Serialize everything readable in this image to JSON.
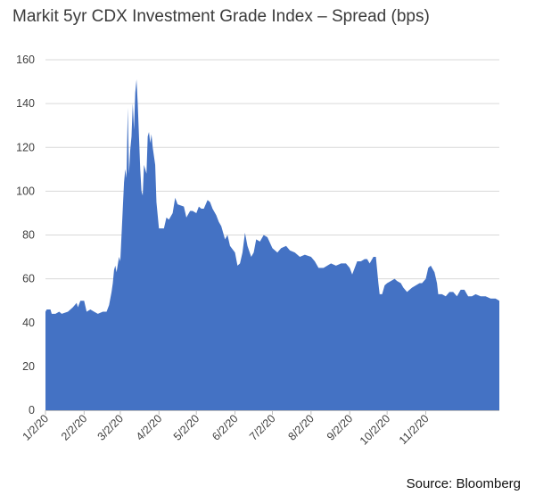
{
  "title": "Markit 5yr CDX Investment Grade Index – Spread (bps)",
  "source": "Source: Bloomberg",
  "colors": {
    "area": "#4472c4",
    "grid": "#d9d9d9"
  },
  "chart_data": {
    "type": "area",
    "title": "Markit 5yr CDX Investment Grade Index – Spread (bps)",
    "xlabel": "",
    "ylabel": "",
    "ylim": [
      0,
      160
    ],
    "yticks": [
      0,
      20,
      40,
      60,
      80,
      100,
      120,
      140,
      160
    ],
    "xlim": [
      "2020-01-02",
      "2020-12-31"
    ],
    "xticks": [
      {
        "date": "2020-01-02",
        "label": "1/2/20"
      },
      {
        "date": "2020-02-02",
        "label": "2/2/20"
      },
      {
        "date": "2020-03-02",
        "label": "3/2/20"
      },
      {
        "date": "2020-04-02",
        "label": "4/2/20"
      },
      {
        "date": "2020-05-02",
        "label": "5/2/20"
      },
      {
        "date": "2020-06-02",
        "label": "6/2/20"
      },
      {
        "date": "2020-07-02",
        "label": "7/2/20"
      },
      {
        "date": "2020-08-02",
        "label": "8/2/20"
      },
      {
        "date": "2020-09-02",
        "label": "9/2/20"
      },
      {
        "date": "2020-10-02",
        "label": "10/2/20"
      },
      {
        "date": "2020-11-02",
        "label": "11/2/20"
      }
    ],
    "grid": true,
    "series": [
      {
        "color": "#4472c4",
        "points": [
          [
            "2020-01-02",
            45
          ],
          [
            "2020-01-03",
            46
          ],
          [
            "2020-01-06",
            46
          ],
          [
            "2020-01-07",
            44
          ],
          [
            "2020-01-10",
            44
          ],
          [
            "2020-01-13",
            45
          ],
          [
            "2020-01-15",
            44
          ],
          [
            "2020-01-20",
            45
          ],
          [
            "2020-01-24",
            47
          ],
          [
            "2020-01-27",
            49
          ],
          [
            "2020-01-28",
            47
          ],
          [
            "2020-01-30",
            50
          ],
          [
            "2020-02-02",
            50
          ],
          [
            "2020-02-04",
            45
          ],
          [
            "2020-02-07",
            46
          ],
          [
            "2020-02-10",
            45
          ],
          [
            "2020-02-13",
            44
          ],
          [
            "2020-02-17",
            45
          ],
          [
            "2020-02-20",
            45
          ],
          [
            "2020-02-22",
            48
          ],
          [
            "2020-02-24",
            54
          ],
          [
            "2020-02-25",
            58
          ],
          [
            "2020-02-26",
            64
          ],
          [
            "2020-02-27",
            66
          ],
          [
            "2020-02-28",
            63
          ],
          [
            "2020-03-01",
            70
          ],
          [
            "2020-03-02",
            68
          ],
          [
            "2020-03-03",
            80
          ],
          [
            "2020-03-04",
            92
          ],
          [
            "2020-03-05",
            104
          ],
          [
            "2020-03-06",
            110
          ],
          [
            "2020-03-07",
            106
          ],
          [
            "2020-03-08",
            138
          ],
          [
            "2020-03-09",
            108
          ],
          [
            "2020-03-10",
            119
          ],
          [
            "2020-03-11",
            125
          ],
          [
            "2020-03-12",
            140
          ],
          [
            "2020-03-13",
            128
          ],
          [
            "2020-03-14",
            145
          ],
          [
            "2020-03-15",
            151
          ],
          [
            "2020-03-16",
            140
          ],
          [
            "2020-03-17",
            125
          ],
          [
            "2020-03-18",
            110
          ],
          [
            "2020-03-19",
            100
          ],
          [
            "2020-03-20",
            98
          ],
          [
            "2020-03-21",
            112
          ],
          [
            "2020-03-22",
            110
          ],
          [
            "2020-03-23",
            108
          ],
          [
            "2020-03-24",
            125
          ],
          [
            "2020-03-25",
            127
          ],
          [
            "2020-03-26",
            122
          ],
          [
            "2020-03-27",
            126
          ],
          [
            "2020-03-28",
            120
          ],
          [
            "2020-03-30",
            112
          ],
          [
            "2020-03-31",
            95
          ],
          [
            "2020-04-02",
            83
          ],
          [
            "2020-04-06",
            83
          ],
          [
            "2020-04-08",
            88
          ],
          [
            "2020-04-10",
            87
          ],
          [
            "2020-04-13",
            90
          ],
          [
            "2020-04-15",
            97
          ],
          [
            "2020-04-17",
            94
          ],
          [
            "2020-04-22",
            93
          ],
          [
            "2020-04-24",
            88
          ],
          [
            "2020-04-27",
            91
          ],
          [
            "2020-04-29",
            91
          ],
          [
            "2020-05-02",
            90
          ],
          [
            "2020-05-04",
            93
          ],
          [
            "2020-05-06",
            92
          ],
          [
            "2020-05-08",
            92
          ],
          [
            "2020-05-11",
            96
          ],
          [
            "2020-05-13",
            95
          ],
          [
            "2020-05-15",
            92
          ],
          [
            "2020-05-18",
            89
          ],
          [
            "2020-05-20",
            86
          ],
          [
            "2020-05-22",
            84
          ],
          [
            "2020-05-25",
            78
          ],
          [
            "2020-05-27",
            80
          ],
          [
            "2020-05-29",
            75
          ],
          [
            "2020-06-02",
            72
          ],
          [
            "2020-06-04",
            66
          ],
          [
            "2020-06-06",
            67
          ],
          [
            "2020-06-08",
            72
          ],
          [
            "2020-06-10",
            81
          ],
          [
            "2020-06-12",
            75
          ],
          [
            "2020-06-15",
            70
          ],
          [
            "2020-06-17",
            72
          ],
          [
            "2020-06-19",
            78
          ],
          [
            "2020-06-22",
            77
          ],
          [
            "2020-06-25",
            80
          ],
          [
            "2020-06-28",
            79
          ],
          [
            "2020-07-02",
            74
          ],
          [
            "2020-07-06",
            72
          ],
          [
            "2020-07-09",
            74
          ],
          [
            "2020-07-13",
            75
          ],
          [
            "2020-07-16",
            73
          ],
          [
            "2020-07-20",
            72
          ],
          [
            "2020-07-24",
            70
          ],
          [
            "2020-07-28",
            71
          ],
          [
            "2020-08-02",
            70
          ],
          [
            "2020-08-05",
            68
          ],
          [
            "2020-08-08",
            65
          ],
          [
            "2020-08-12",
            65
          ],
          [
            "2020-08-15",
            66
          ],
          [
            "2020-08-18",
            67
          ],
          [
            "2020-08-22",
            66
          ],
          [
            "2020-08-26",
            67
          ],
          [
            "2020-08-30",
            67
          ],
          [
            "2020-09-02",
            65
          ],
          [
            "2020-09-04",
            62
          ],
          [
            "2020-09-06",
            65
          ],
          [
            "2020-09-08",
            68
          ],
          [
            "2020-09-11",
            68
          ],
          [
            "2020-09-14",
            69
          ],
          [
            "2020-09-16",
            69
          ],
          [
            "2020-09-18",
            67
          ],
          [
            "2020-09-21",
            70
          ],
          [
            "2020-09-23",
            70
          ],
          [
            "2020-09-25",
            58
          ],
          [
            "2020-09-26",
            53
          ],
          [
            "2020-09-28",
            53
          ],
          [
            "2020-09-30",
            57
          ],
          [
            "2020-10-02",
            58
          ],
          [
            "2020-10-05",
            59
          ],
          [
            "2020-10-08",
            60
          ],
          [
            "2020-10-10",
            59
          ],
          [
            "2020-10-13",
            58
          ],
          [
            "2020-10-15",
            56
          ],
          [
            "2020-10-18",
            54
          ],
          [
            "2020-10-20",
            55
          ],
          [
            "2020-10-22",
            56
          ],
          [
            "2020-10-25",
            57
          ],
          [
            "2020-10-28",
            58
          ],
          [
            "2020-10-30",
            58
          ],
          [
            "2020-11-02",
            60
          ],
          [
            "2020-11-04",
            65
          ],
          [
            "2020-11-06",
            66
          ],
          [
            "2020-11-09",
            63
          ],
          [
            "2020-11-11",
            58
          ],
          [
            "2020-11-12",
            53
          ],
          [
            "2020-11-15",
            53
          ],
          [
            "2020-11-18",
            52
          ],
          [
            "2020-11-21",
            54
          ],
          [
            "2020-11-24",
            54
          ],
          [
            "2020-11-27",
            52
          ],
          [
            "2020-11-30",
            55
          ],
          [
            "2020-12-03",
            55
          ],
          [
            "2020-12-06",
            52
          ],
          [
            "2020-12-09",
            52
          ],
          [
            "2020-12-12",
            53
          ],
          [
            "2020-12-16",
            52
          ],
          [
            "2020-12-20",
            52
          ],
          [
            "2020-12-24",
            51
          ],
          [
            "2020-12-28",
            51
          ],
          [
            "2020-12-31",
            50
          ]
        ]
      }
    ]
  }
}
